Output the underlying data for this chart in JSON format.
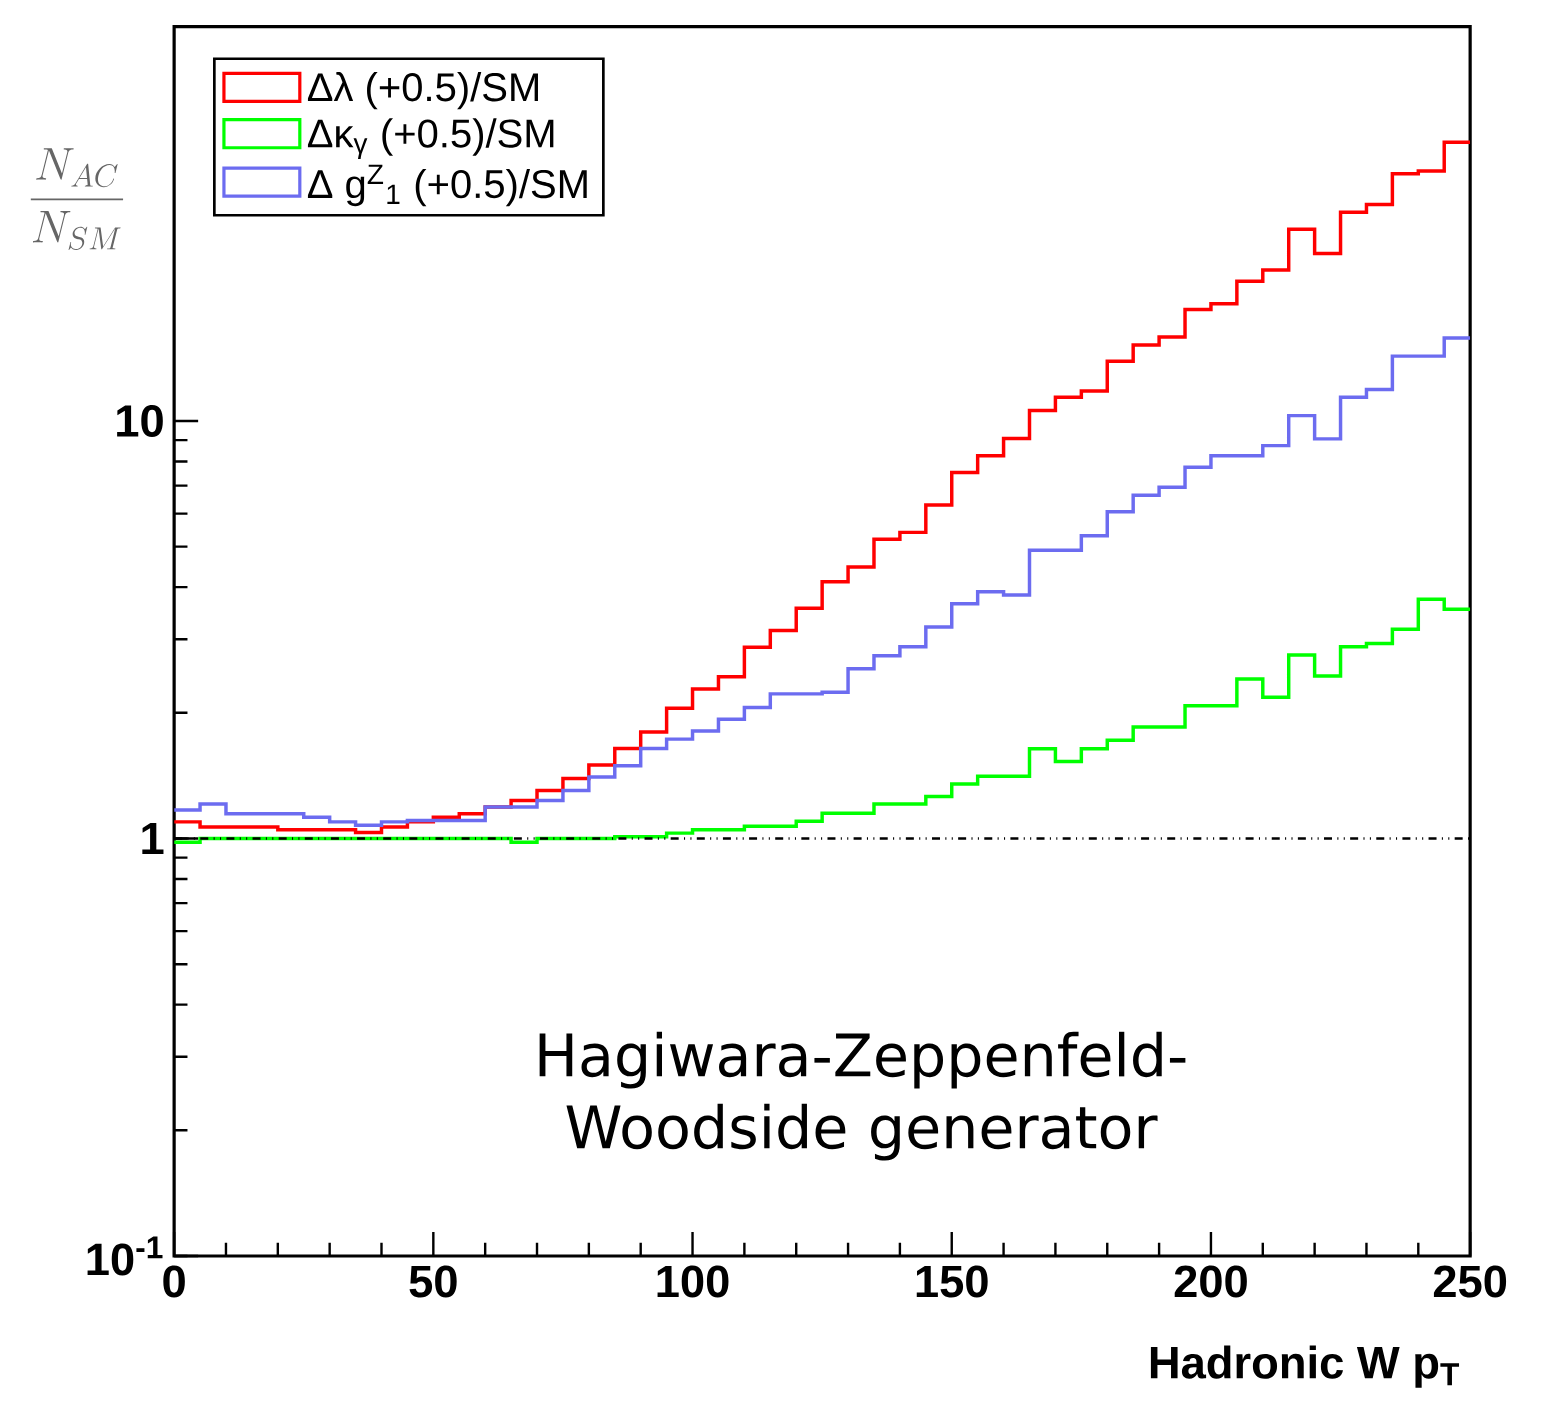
{
  "chart_data": {
    "type": "histogram",
    "xlabel": "Hadronic W p$_{T}$",
    "ylabel": "\\frac{N_{AC}}{N_{SM}}",
    "bins": [
      0,
      5,
      10,
      15,
      20,
      25,
      30,
      35,
      40,
      45,
      50,
      55,
      60,
      65,
      70,
      75,
      80,
      85,
      90,
      95,
      100,
      105,
      110,
      115,
      120,
      125,
      130,
      135,
      140,
      145,
      150,
      155,
      160,
      165,
      170,
      175,
      180,
      185,
      190,
      195,
      200,
      205,
      210,
      215,
      220,
      225,
      230,
      235,
      240,
      245,
      250
    ],
    "series": [
      {
        "name": "Δλ (+0.5)/SM",
        "color": "#ff0000",
        "values": [
          1.096,
          1.065,
          1.065,
          1.065,
          1.049,
          1.049,
          1.049,
          1.034,
          1.065,
          1.096,
          1.125,
          1.146,
          1.189,
          1.233,
          1.303,
          1.392,
          1.499,
          1.643,
          1.8,
          2.05,
          2.28,
          2.44,
          2.87,
          3.15,
          3.56,
          4.12,
          4.47,
          5.21,
          5.41,
          6.29,
          7.53,
          8.26,
          9.08,
          10.6,
          11.4,
          11.8,
          13.9,
          15.2,
          15.9,
          18.5,
          19.1,
          21.6,
          23.0,
          28.8,
          25.2,
          31.6,
          33.0,
          39.1,
          39.7,
          46.5
        ]
      },
      {
        "name": "Δκ$_{γ}$ (+0.5)/SM",
        "color": "#00ff00",
        "values": [
          0.98,
          1.0,
          1.0,
          1.0,
          1.0,
          1.0,
          1.0,
          1.0,
          1.0,
          1.0,
          1.0,
          1.0,
          1.0,
          0.98,
          1.0,
          1.0,
          1.0,
          1.01,
          1.01,
          1.03,
          1.05,
          1.05,
          1.07,
          1.07,
          1.1,
          1.15,
          1.15,
          1.21,
          1.21,
          1.26,
          1.35,
          1.41,
          1.41,
          1.64,
          1.53,
          1.64,
          1.72,
          1.85,
          1.85,
          2.08,
          2.08,
          2.41,
          2.18,
          2.75,
          2.45,
          2.88,
          2.93,
          3.17,
          3.74,
          3.54
        ]
      },
      {
        "name": "Δ g$^{Z}$$_{1}$ (+0.5)/SM",
        "color": "#6c6cf0",
        "values": [
          1.17,
          1.21,
          1.146,
          1.146,
          1.146,
          1.125,
          1.096,
          1.076,
          1.096,
          1.104,
          1.104,
          1.104,
          1.189,
          1.189,
          1.233,
          1.303,
          1.403,
          1.493,
          1.643,
          1.73,
          1.81,
          1.93,
          2.06,
          2.22,
          2.22,
          2.24,
          2.55,
          2.74,
          2.88,
          3.21,
          3.65,
          3.9,
          3.83,
          4.9,
          4.9,
          5.31,
          6.06,
          6.64,
          6.94,
          7.75,
          8.26,
          8.26,
          8.73,
          10.3,
          9.06,
          11.4,
          11.9,
          14.3,
          14.3,
          15.8
        ]
      }
    ],
    "xlim": [
      0,
      250
    ],
    "xticks": [
      0,
      50,
      100,
      150,
      200,
      250
    ],
    "ylim": [
      0.1,
      88
    ],
    "yticks": [
      {
        "value": 0.1,
        "label": "10$^{-1}$"
      },
      1,
      10
    ],
    "log": true,
    "legend": "top left",
    "ref_lines": [
      {
        "axis": "y",
        "value": 1,
        "color": "#000000",
        "line_style": "dashed"
      }
    ],
    "annotations": [
      "Hagiwara-Zeppenfeld-Woodside generator"
    ]
  }
}
